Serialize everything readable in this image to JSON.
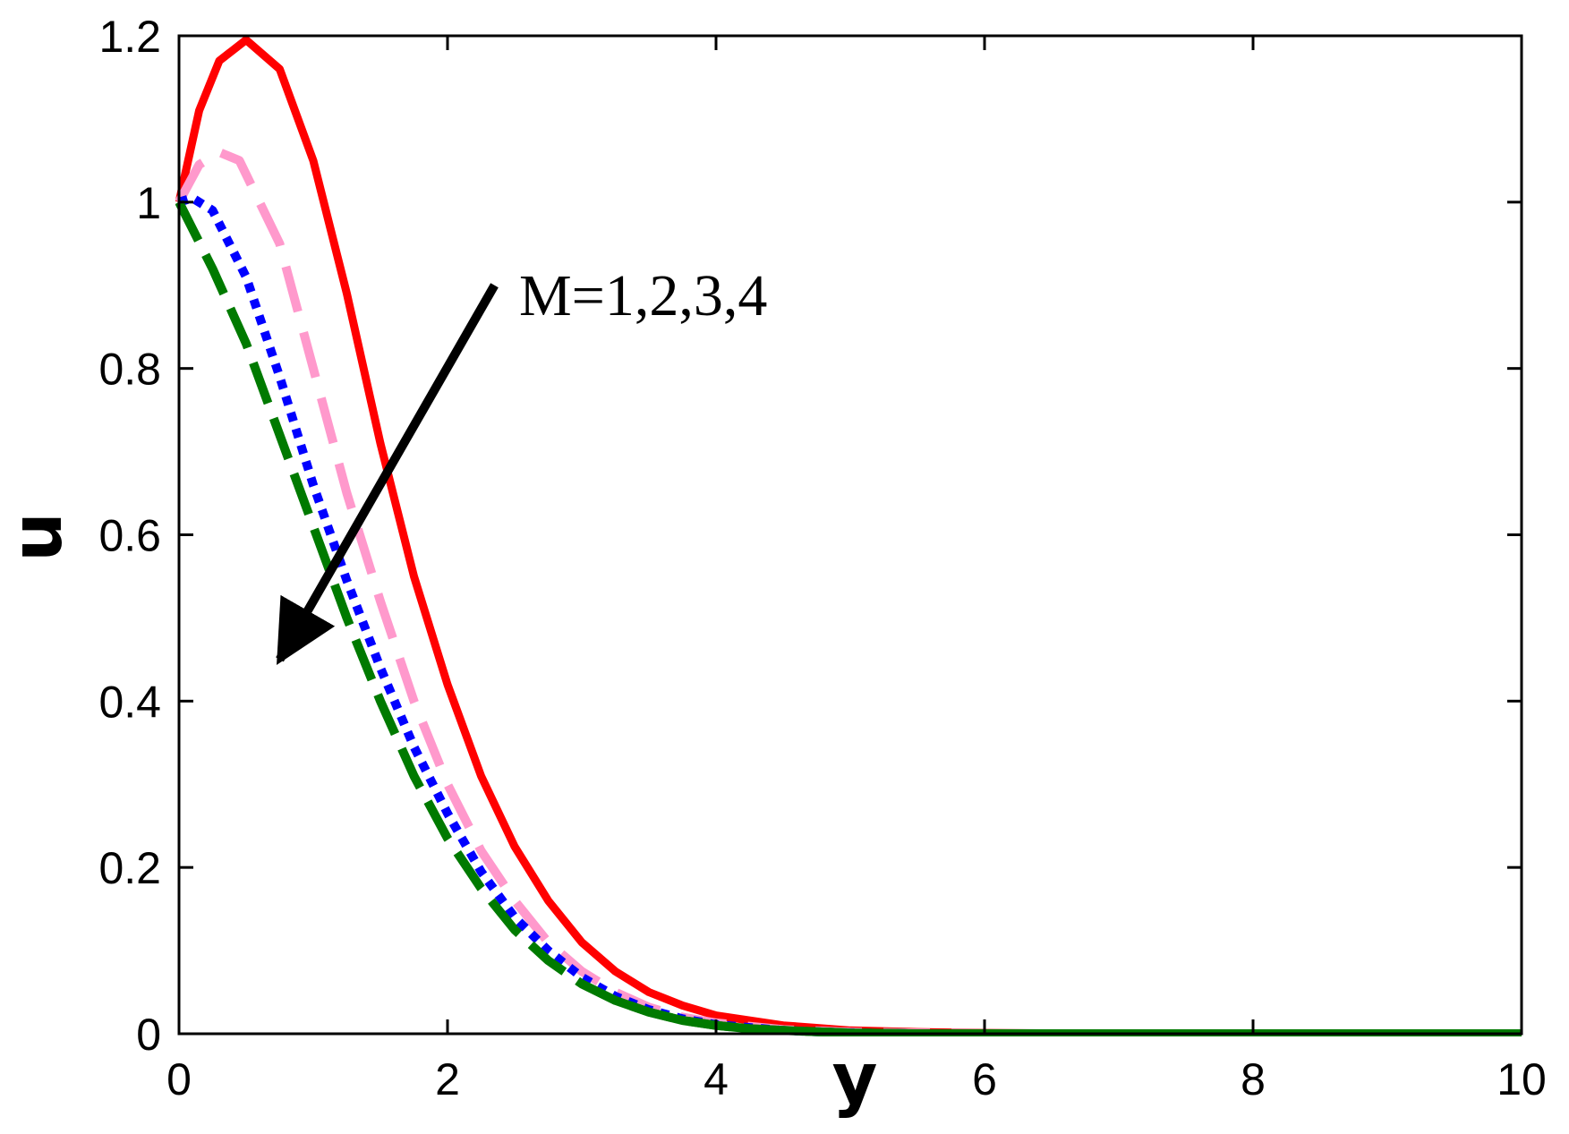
{
  "chart_data": {
    "type": "line",
    "xlabel": "y",
    "ylabel": "u",
    "xlim": [
      0,
      10
    ],
    "ylim": [
      0,
      1.2
    ],
    "xticks": [
      0,
      2,
      4,
      6,
      8,
      10
    ],
    "yticks": [
      0,
      0.2,
      0.4,
      0.6,
      0.8,
      1,
      1.2
    ],
    "xtick_labels": [
      "0",
      "2",
      "4",
      "6",
      "8",
      "10"
    ],
    "ytick_labels": [
      "0",
      "0.2",
      "0.4",
      "0.6",
      "0.8",
      "1",
      "1.2"
    ],
    "grid": false,
    "annotation": {
      "text": "M=1,2,3,4",
      "arrow_from": [
        2.35,
        0.9
      ],
      "arrow_to": [
        0.75,
        0.45
      ],
      "arrow_color": "#000000"
    },
    "series": [
      {
        "color": "#ff0000",
        "style": "solid",
        "x": [
          0,
          0.15,
          0.3,
          0.5,
          0.75,
          1.0,
          1.25,
          1.5,
          1.75,
          2.0,
          2.25,
          2.5,
          2.75,
          3.0,
          3.25,
          3.5,
          3.75,
          4.0,
          4.5,
          5.0,
          5.5,
          6.0,
          7.0,
          8.0,
          9.0,
          10.0
        ],
        "y": [
          1.0,
          1.11,
          1.17,
          1.195,
          1.16,
          1.05,
          0.89,
          0.71,
          0.55,
          0.42,
          0.31,
          0.225,
          0.16,
          0.11,
          0.075,
          0.05,
          0.034,
          0.022,
          0.01,
          0.004,
          0.002,
          0.001,
          0.0,
          0.0,
          0.0,
          0.0
        ]
      },
      {
        "color": "#ff99cc",
        "style": "dashed",
        "x": [
          0,
          0.15,
          0.3,
          0.45,
          0.75,
          1.0,
          1.25,
          1.5,
          1.75,
          2.0,
          2.25,
          2.5,
          2.75,
          3.0,
          3.25,
          3.5,
          3.75,
          4.0,
          4.5,
          5.0,
          5.5,
          6.0,
          7.0,
          8.0,
          9.0,
          10.0
        ],
        "y": [
          1.0,
          1.045,
          1.06,
          1.05,
          0.95,
          0.8,
          0.65,
          0.52,
          0.4,
          0.3,
          0.22,
          0.16,
          0.11,
          0.075,
          0.05,
          0.032,
          0.02,
          0.013,
          0.005,
          0.002,
          0.001,
          0.0,
          0.0,
          0.0,
          0.0,
          0.0
        ]
      },
      {
        "color": "#0000ff",
        "style": "dotted",
        "x": [
          0,
          0.1,
          0.25,
          0.5,
          0.75,
          1.0,
          1.25,
          1.5,
          1.75,
          2.0,
          2.25,
          2.5,
          2.75,
          3.0,
          3.25,
          3.5,
          3.75,
          4.0,
          4.5,
          5.0,
          5.5,
          6.0,
          7.0,
          8.0,
          9.0,
          10.0
        ],
        "y": [
          1.0,
          1.005,
          0.99,
          0.91,
          0.79,
          0.66,
          0.545,
          0.44,
          0.345,
          0.265,
          0.195,
          0.14,
          0.1,
          0.068,
          0.045,
          0.029,
          0.018,
          0.011,
          0.004,
          0.001,
          0.0,
          0.0,
          0.0,
          0.0,
          0.0,
          0.0
        ]
      },
      {
        "color": "#007a00",
        "style": "dash-solid",
        "x": [
          0,
          0.25,
          0.5,
          0.75,
          1.0,
          1.25,
          1.5,
          1.75,
          2.0,
          2.25,
          2.5,
          2.75,
          3.0,
          3.25,
          3.5,
          3.75,
          4.0,
          4.25,
          4.5,
          5.0,
          5.5,
          6.0,
          7.0,
          8.0,
          9.0,
          10.0
        ],
        "y": [
          1.0,
          0.92,
          0.83,
          0.72,
          0.61,
          0.5,
          0.4,
          0.31,
          0.235,
          0.175,
          0.125,
          0.088,
          0.06,
          0.04,
          0.026,
          0.016,
          0.01,
          0.006,
          0.004,
          0.001,
          0.0,
          0.0,
          0.0,
          0.0,
          0.0,
          0.0
        ]
      }
    ]
  }
}
